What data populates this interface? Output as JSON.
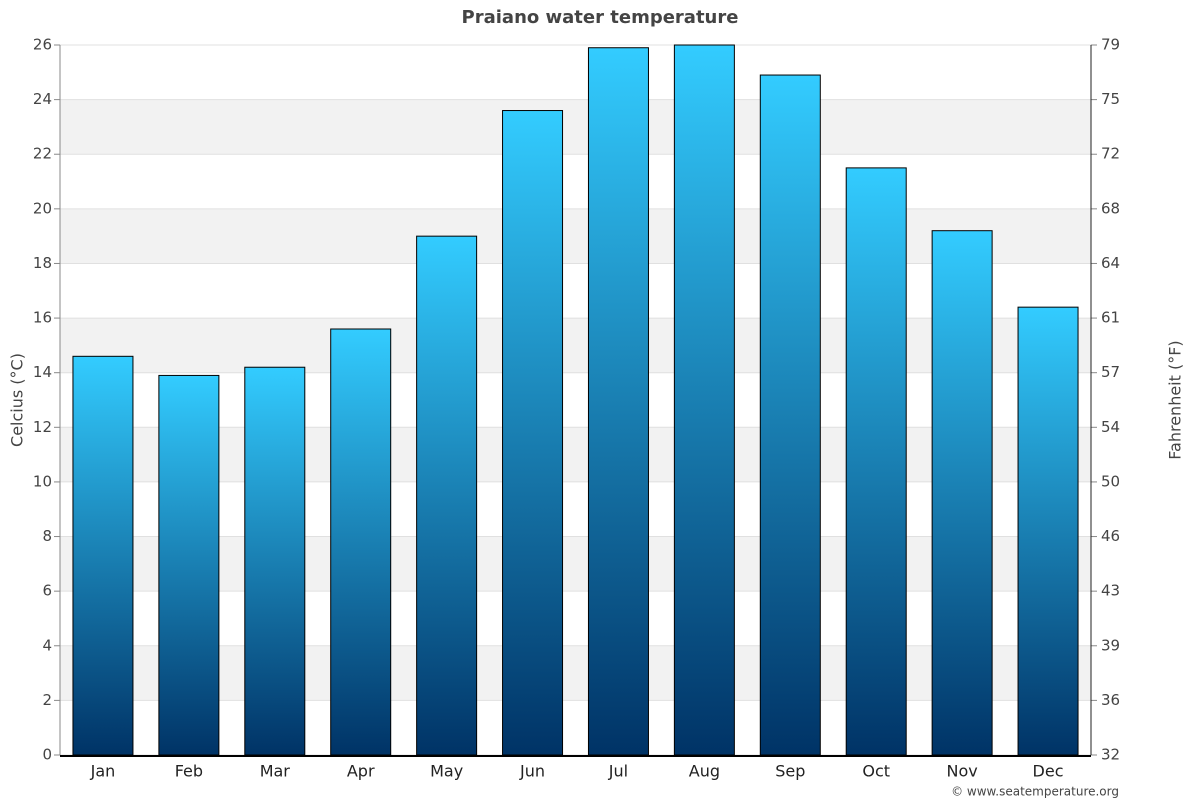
{
  "chart_data": {
    "type": "bar",
    "title": "Praiano water temperature",
    "ylabel": "Celcius (°C)",
    "y2label": "Fahrenheit (°F)",
    "credit": "© www.seatemperature.org",
    "categories": [
      "Jan",
      "Feb",
      "Mar",
      "Apr",
      "May",
      "Jun",
      "Jul",
      "Aug",
      "Sep",
      "Oct",
      "Nov",
      "Dec"
    ],
    "values": [
      14.6,
      13.9,
      14.2,
      15.6,
      19.0,
      23.6,
      25.9,
      26.0,
      24.9,
      21.5,
      19.2,
      16.4
    ],
    "color": "#33ccff",
    "ylim": [
      0,
      26
    ],
    "yticks": [
      0,
      2,
      4,
      6,
      8,
      10,
      12,
      14,
      16,
      18,
      20,
      22,
      24,
      26
    ],
    "y2lim": [
      32,
      78.8
    ],
    "y2ticks": [
      32,
      {
        "value": 35.6,
        "label": "36"
      },
      {
        "value": 39.2,
        "label": "39"
      },
      {
        "value": 42.8,
        "label": "43"
      },
      {
        "value": 46.4,
        "label": "46"
      },
      50,
      {
        "value": 53.6,
        "label": "54"
      },
      {
        "value": 57.2,
        "label": "57"
      },
      {
        "value": 60.8,
        "label": "61"
      },
      {
        "value": 64.4,
        "label": "64"
      },
      68,
      {
        "value": 71.6,
        "label": "72"
      },
      {
        "value": 75.2,
        "label": "75"
      },
      {
        "value": 78.8,
        "label": "79"
      }
    ],
    "grid": true
  }
}
